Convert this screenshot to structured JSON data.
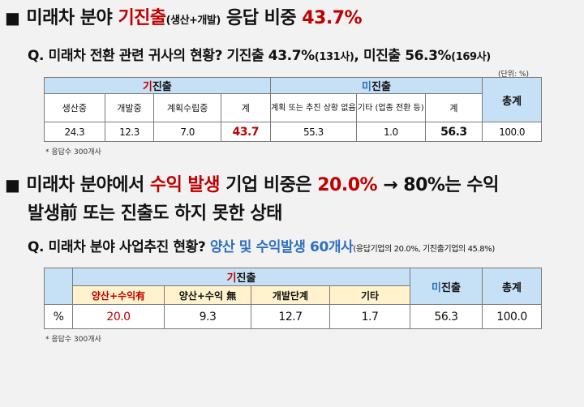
{
  "heading1": {
    "bullet": "■",
    "part1": "미래차 분야 ",
    "highlight": "기진출",
    "paren": "(생산+개발)",
    "part2": " 응답 비중 ",
    "value": "43.7%"
  },
  "q1": {
    "prefix": "Q. 미래차 전환 관련 귀사의 현황? 기진출 43.7%",
    "count1": "(131사)",
    "mid": ", 미진출 56.3%",
    "count2": "(169사)"
  },
  "table1": {
    "unit": "(단위: %)",
    "group_entered_first": "기",
    "group_entered_rest": "진출",
    "group_not_first": "미",
    "group_not_rest": "진출",
    "total_header": "총계",
    "cols": [
      "생산중",
      "개발중",
      "계획수립중",
      "계",
      "계획 또는 추진 상황 없음",
      "기타 (업종 전환 등)",
      "계"
    ],
    "values": [
      "24.3",
      "12.3",
      "7.0",
      "43.7",
      "55.3",
      "1.0",
      "56.3",
      "100.0"
    ]
  },
  "note1": "* 응답수 300개사",
  "heading2": {
    "bullet": "■",
    "part1": "미래차 분야에서 ",
    "highlight": "수익 발생",
    "part2": " 기업 비중은 ",
    "value": "20.0%",
    "part3": " → 80%는 수익",
    "line2": "발생前 또는 진출도 하지 못한 상태"
  },
  "q2": {
    "prefix": "Q. 미래차 분야 사업추진 현황? ",
    "highlight": "양산 및 수익발생 60개사",
    "tail": "(응답기업의 20.0%, 기진출기업의 45.8%)"
  },
  "table2": {
    "group_entered_first": "기",
    "group_entered_rest": "진출",
    "not_entered_first": "미",
    "not_entered_rest": "진출",
    "total_header": "총계",
    "cols": [
      "양산+수익有",
      "양산+수익 無",
      "개발단계",
      "기타"
    ],
    "row_label": "%",
    "values": [
      "20.0",
      "9.3",
      "12.7",
      "1.7",
      "56.3",
      "100.0"
    ]
  },
  "note2": "* 응답수 300개사"
}
